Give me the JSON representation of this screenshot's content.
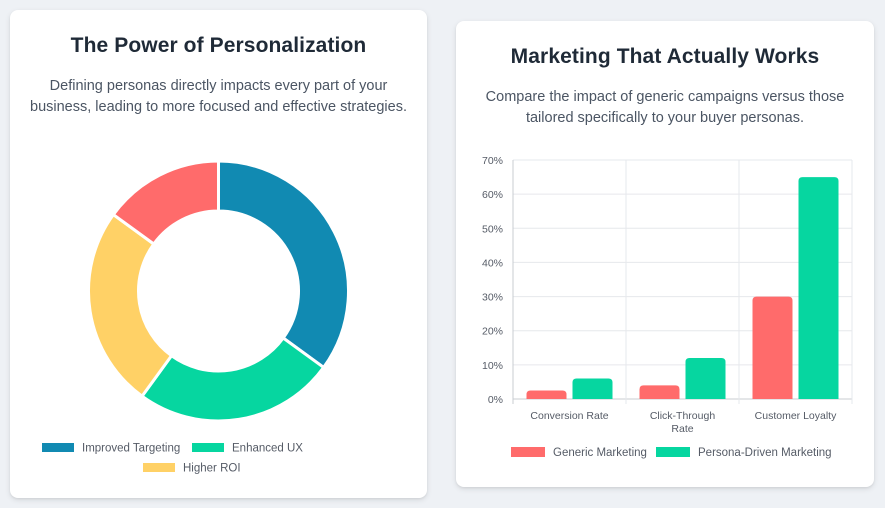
{
  "left_card": {
    "title": "The Power of Personalization",
    "description": "Defining personas directly impacts every part of your business, leading to more focused and effective strategies."
  },
  "right_card": {
    "title": "Marketing That Actually Works",
    "description": "Compare the impact of generic campaigns versus those tailored specifically to your buyer personas."
  },
  "chart_data": [
    {
      "type": "pie",
      "variant": "doughnut",
      "labels": [
        "Improved Targeting",
        "Enhanced UX",
        "Higher ROI",
        ""
      ],
      "values": [
        35,
        25,
        25,
        15
      ],
      "colors": [
        "#118ab2",
        "#06d6a0",
        "#ffd166",
        "#ff6b6b"
      ],
      "legend": "bottom"
    },
    {
      "type": "bar",
      "categories": [
        "Conversion Rate",
        "Click-Through Rate",
        "Customer Loyalty"
      ],
      "series": [
        {
          "name": "Generic Marketing",
          "values": [
            2.5,
            4,
            30
          ],
          "color": "#ff6b6b"
        },
        {
          "name": "Persona-Driven Marketing",
          "values": [
            6,
            12,
            65
          ],
          "color": "#06d6a0"
        }
      ],
      "ylim": [
        0,
        70
      ],
      "yticks": [
        "0%",
        "10%",
        "20%",
        "30%",
        "40%",
        "50%",
        "60%",
        "70%"
      ],
      "grid": true,
      "legend": "bottom"
    }
  ]
}
